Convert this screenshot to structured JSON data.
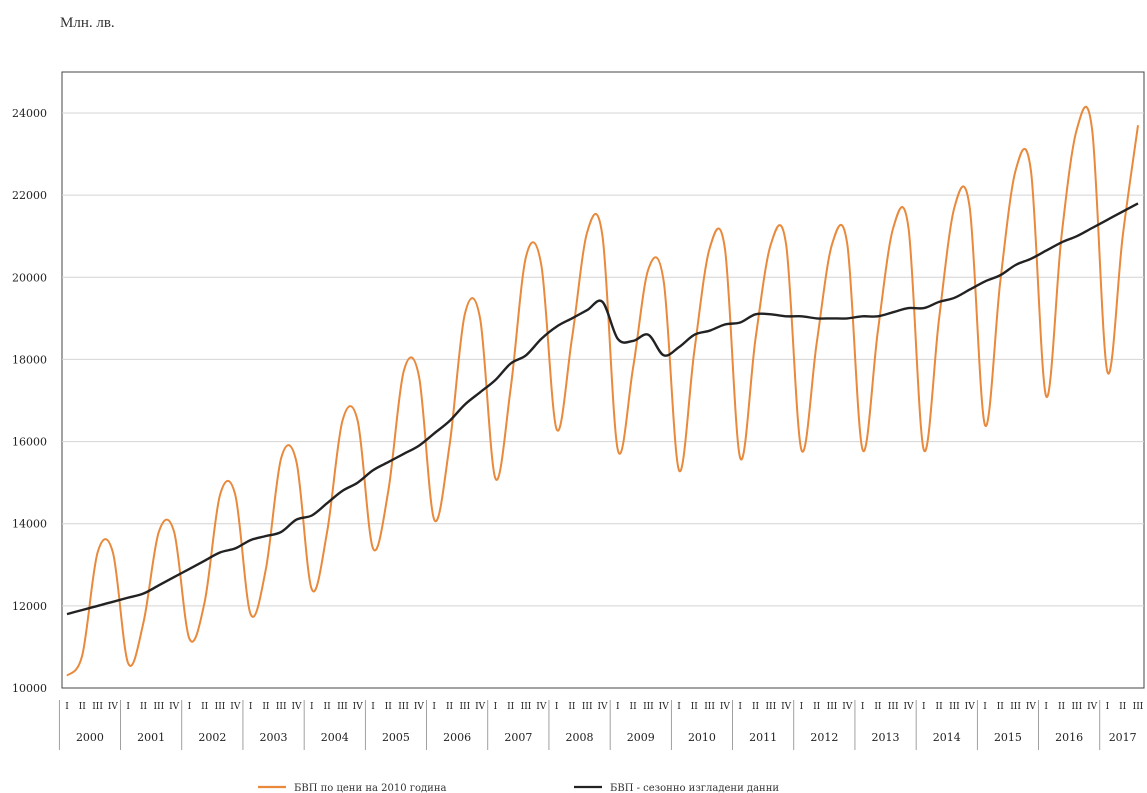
{
  "chart_data": {
    "type": "line",
    "ylabel": "Млн. лв.",
    "ylim": [
      10000,
      25000
    ],
    "yticks": [
      10000,
      12000,
      14000,
      16000,
      18000,
      20000,
      22000,
      24000
    ],
    "grid": true,
    "legend_position": "bottom",
    "years": [
      "2000",
      "2001",
      "2002",
      "2003",
      "2004",
      "2005",
      "2006",
      "2007",
      "2008",
      "2009",
      "2010",
      "2011",
      "2012",
      "2013",
      "2014",
      "2015",
      "2016",
      "2017"
    ],
    "quarter_labels": [
      "I",
      "II",
      "III",
      "IV"
    ],
    "x": [
      "2000 I",
      "2000 II",
      "2000 III",
      "2000 IV",
      "2001 I",
      "2001 II",
      "2001 III",
      "2001 IV",
      "2002 I",
      "2002 II",
      "2002 III",
      "2002 IV",
      "2003 I",
      "2003 II",
      "2003 III",
      "2003 IV",
      "2004 I",
      "2004 II",
      "2004 III",
      "2004 IV",
      "2005 I",
      "2005 II",
      "2005 III",
      "2005 IV",
      "2006 I",
      "2006 II",
      "2006 III",
      "2006 IV",
      "2007 I",
      "2007 II",
      "2007 III",
      "2007 IV",
      "2008 I",
      "2008 II",
      "2008 III",
      "2008 IV",
      "2009 I",
      "2009 II",
      "2009 III",
      "2009 IV",
      "2010 I",
      "2010 II",
      "2010 III",
      "2010 IV",
      "2011 I",
      "2011 II",
      "2011 III",
      "2011 IV",
      "2012 I",
      "2012 II",
      "2012 III",
      "2012 IV",
      "2013 I",
      "2013 II",
      "2013 III",
      "2013 IV",
      "2014 I",
      "2014 II",
      "2014 III",
      "2014 IV",
      "2015 I",
      "2015 II",
      "2015 III",
      "2015 IV",
      "2016 I",
      "2016 II",
      "2016 III",
      "2016 IV",
      "2017 I",
      "2017 II",
      "2017 III"
    ],
    "series": [
      {
        "name": "БВП по цени на 2010 година",
        "color": "#e8893c",
        "values": [
          10300,
          10800,
          13300,
          13300,
          10600,
          11600,
          13800,
          13800,
          11200,
          12100,
          14700,
          14700,
          11800,
          12900,
          15600,
          15500,
          12400,
          13800,
          16500,
          16500,
          13400,
          14800,
          17700,
          17600,
          14100,
          15900,
          19100,
          19000,
          15100,
          17300,
          20500,
          20300,
          16300,
          18500,
          21100,
          21000,
          15800,
          17800,
          20200,
          19900,
          15300,
          18200,
          20700,
          20700,
          15600,
          18500,
          20800,
          20800,
          15800,
          18400,
          20800,
          20800,
          15800,
          18700,
          21200,
          21200,
          15800,
          19000,
          21700,
          21700,
          16400,
          19900,
          22600,
          22600,
          17100,
          21000,
          23600,
          23600,
          17700,
          21000,
          23700
        ]
      },
      {
        "name": "БВП - сезонно изгладени данни",
        "color": "#222222",
        "values": [
          11800,
          11900,
          12000,
          12100,
          12200,
          12300,
          12500,
          12700,
          12900,
          13100,
          13300,
          13400,
          13600,
          13700,
          13800,
          14100,
          14200,
          14500,
          14800,
          15000,
          15300,
          15500,
          15700,
          15900,
          16200,
          16500,
          16900,
          17200,
          17500,
          17900,
          18100,
          18500,
          18800,
          19000,
          19200,
          19400,
          18500,
          18450,
          18600,
          18100,
          18300,
          18600,
          18700,
          18850,
          18900,
          19100,
          19100,
          19050,
          19050,
          19000,
          19000,
          19000,
          19050,
          19050,
          19150,
          19250,
          19250,
          19400,
          19500,
          19700,
          19900,
          20050,
          20300,
          20450,
          20650,
          20850,
          21000,
          21200,
          21400,
          21600,
          21800
        ]
      }
    ]
  }
}
